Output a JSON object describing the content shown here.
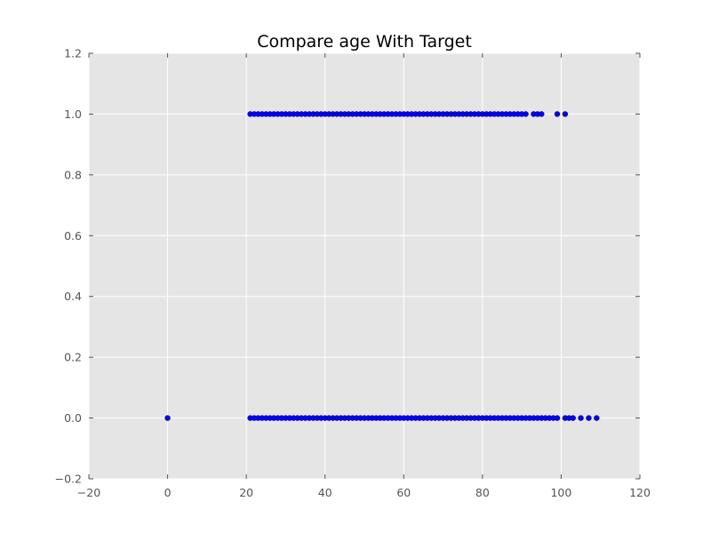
{
  "chart_data": {
    "type": "scatter",
    "title": "Compare age With Target",
    "xlabel": "",
    "ylabel": "",
    "xlim": [
      -20,
      120
    ],
    "ylim": [
      -0.2,
      1.2
    ],
    "x_ticks": [
      -20,
      0,
      20,
      40,
      60,
      80,
      100,
      120
    ],
    "x_tick_labels": [
      "−20",
      "0",
      "20",
      "40",
      "60",
      "80",
      "100",
      "120"
    ],
    "y_ticks": [
      -0.2,
      0.0,
      0.2,
      0.4,
      0.6,
      0.8,
      1.0,
      1.2
    ],
    "y_tick_labels": [
      "−0.2",
      "0.0",
      "0.2",
      "0.4",
      "0.6",
      "0.8",
      "1.0",
      "1.2"
    ],
    "grid": true,
    "background_color": "#e5e5e5",
    "grid_color": "#ffffff",
    "point_color": "#0000ff",
    "series": [
      {
        "target": 1,
        "x": [
          21,
          22,
          23,
          24,
          25,
          26,
          27,
          28,
          29,
          30,
          31,
          32,
          33,
          34,
          35,
          36,
          37,
          38,
          39,
          40,
          41,
          42,
          43,
          44,
          45,
          46,
          47,
          48,
          49,
          50,
          51,
          52,
          53,
          54,
          55,
          56,
          57,
          58,
          59,
          60,
          61,
          62,
          63,
          64,
          65,
          66,
          67,
          68,
          69,
          70,
          71,
          72,
          73,
          74,
          75,
          76,
          77,
          78,
          79,
          80,
          81,
          82,
          83,
          84,
          85,
          86,
          87,
          88,
          89,
          90,
          91,
          93,
          94,
          95,
          99,
          101
        ]
      },
      {
        "target": 0,
        "x": [
          0,
          21,
          22,
          23,
          24,
          25,
          26,
          27,
          28,
          29,
          30,
          31,
          32,
          33,
          34,
          35,
          36,
          37,
          38,
          39,
          40,
          41,
          42,
          43,
          44,
          45,
          46,
          47,
          48,
          49,
          50,
          51,
          52,
          53,
          54,
          55,
          56,
          57,
          58,
          59,
          60,
          61,
          62,
          63,
          64,
          65,
          66,
          67,
          68,
          69,
          70,
          71,
          72,
          73,
          74,
          75,
          76,
          77,
          78,
          79,
          80,
          81,
          82,
          83,
          84,
          85,
          86,
          87,
          88,
          89,
          90,
          91,
          92,
          93,
          94,
          95,
          96,
          97,
          98,
          99,
          101,
          102,
          103,
          105,
          107,
          109
        ]
      }
    ]
  }
}
